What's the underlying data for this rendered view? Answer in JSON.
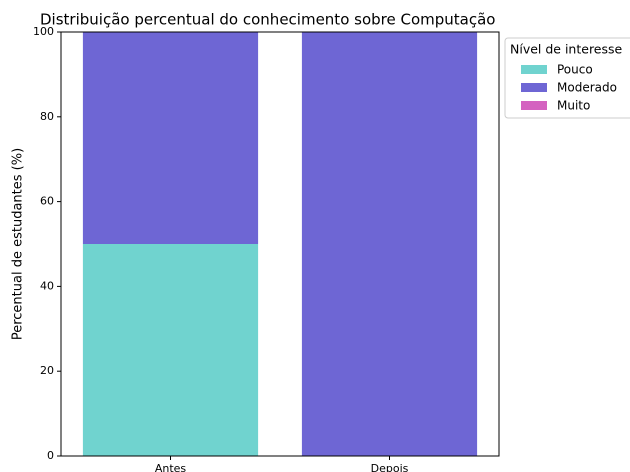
{
  "chart_data": {
    "type": "stacked_bar",
    "title": "Distribuição percentual do conhecimento sobre Computação",
    "ylabel": "Percentual de estudantes (%)",
    "categories": [
      "Antes",
      "Depois"
    ],
    "series": [
      {
        "name": "Pouco",
        "color": "#70d3cf",
        "values": [
          50,
          0
        ]
      },
      {
        "name": "Moderado",
        "color": "#6e66d4",
        "values": [
          50,
          100
        ]
      },
      {
        "name": "Muito",
        "color": "#d462c0",
        "values": [
          0,
          0
        ]
      }
    ],
    "legend_title": "Nível de interesse",
    "legend": "outside upper right",
    "ylim": [
      0,
      100
    ],
    "yticks": [
      0,
      20,
      40,
      60,
      80,
      100
    ]
  }
}
